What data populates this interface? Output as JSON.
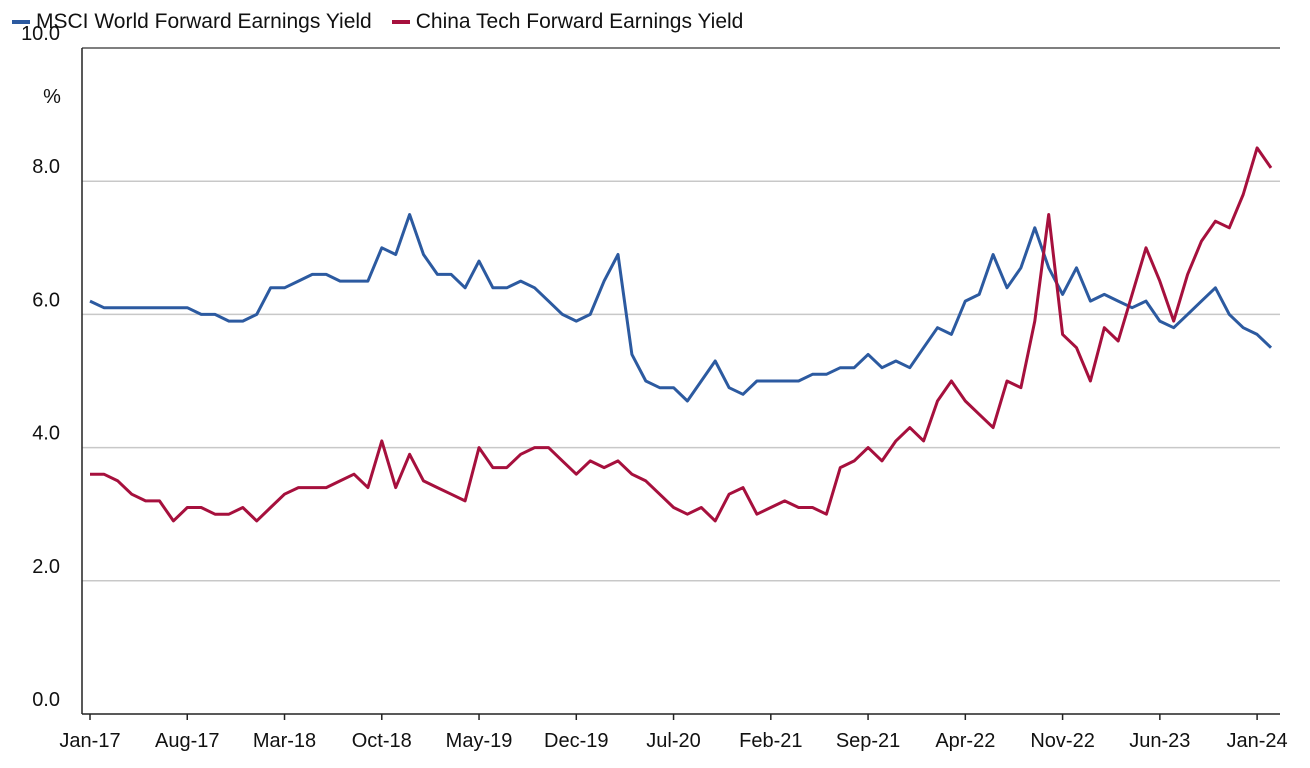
{
  "chart_data": {
    "type": "line",
    "title": "",
    "xlabel": "",
    "ylabel": "",
    "unit_label": "%",
    "ylim": [
      0,
      10
    ],
    "yticks": [
      "0.0",
      "2.0",
      "4.0",
      "6.0",
      "8.0",
      "10.0"
    ],
    "grid": true,
    "legend_position": "top-left",
    "xtick_labels": [
      "Jan-17",
      "Aug-17",
      "Mar-18",
      "Oct-18",
      "May-19",
      "Dec-19",
      "Jul-20",
      "Feb-21",
      "Sep-21",
      "Apr-22",
      "Nov-22",
      "Jun-23",
      "Jan-24"
    ],
    "x": [
      "Jan-17",
      "Feb-17",
      "Mar-17",
      "Apr-17",
      "May-17",
      "Jun-17",
      "Jul-17",
      "Aug-17",
      "Sep-17",
      "Oct-17",
      "Nov-17",
      "Dec-17",
      "Jan-18",
      "Feb-18",
      "Mar-18",
      "Apr-18",
      "May-18",
      "Jun-18",
      "Jul-18",
      "Aug-18",
      "Sep-18",
      "Oct-18",
      "Nov-18",
      "Dec-18",
      "Jan-19",
      "Feb-19",
      "Mar-19",
      "Apr-19",
      "May-19",
      "Jun-19",
      "Jul-19",
      "Aug-19",
      "Sep-19",
      "Oct-19",
      "Nov-19",
      "Dec-19",
      "Jan-20",
      "Feb-20",
      "Mar-20",
      "Apr-20",
      "May-20",
      "Jun-20",
      "Jul-20",
      "Aug-20",
      "Sep-20",
      "Oct-20",
      "Nov-20",
      "Dec-20",
      "Jan-21",
      "Feb-21",
      "Mar-21",
      "Apr-21",
      "May-21",
      "Jun-21",
      "Jul-21",
      "Aug-21",
      "Sep-21",
      "Oct-21",
      "Nov-21",
      "Dec-21",
      "Jan-22",
      "Feb-22",
      "Mar-22",
      "Apr-22",
      "May-22",
      "Jun-22",
      "Jul-22",
      "Aug-22",
      "Sep-22",
      "Oct-22",
      "Nov-22",
      "Dec-22",
      "Jan-23",
      "Feb-23",
      "Mar-23",
      "Apr-23",
      "May-23",
      "Jun-23",
      "Jul-23",
      "Aug-23",
      "Sep-23",
      "Oct-23",
      "Nov-23",
      "Dec-23",
      "Jan-24",
      "Feb-24"
    ],
    "series": [
      {
        "name": "MSCI World Forward Earnings Yield",
        "color": "#2c5aa0",
        "values": [
          6.2,
          6.1,
          6.1,
          6.1,
          6.1,
          6.1,
          6.1,
          6.1,
          6.0,
          6.0,
          5.9,
          5.9,
          6.0,
          6.4,
          6.4,
          6.5,
          6.6,
          6.6,
          6.5,
          6.5,
          6.5,
          7.0,
          6.9,
          7.5,
          6.9,
          6.6,
          6.6,
          6.4,
          6.8,
          6.4,
          6.4,
          6.5,
          6.4,
          6.2,
          6.0,
          5.9,
          6.0,
          6.5,
          6.9,
          5.4,
          5.0,
          4.9,
          4.9,
          4.7,
          5.0,
          5.3,
          4.9,
          4.8,
          5.0,
          5.0,
          5.0,
          5.0,
          5.1,
          5.1,
          5.2,
          5.2,
          5.4,
          5.2,
          5.3,
          5.2,
          5.5,
          5.8,
          5.7,
          6.2,
          6.3,
          6.9,
          6.4,
          6.7,
          7.3,
          6.7,
          6.3,
          6.7,
          6.2,
          6.3,
          6.2,
          6.1,
          6.2,
          5.9,
          5.8,
          6.0,
          6.2,
          6.4,
          6.0,
          5.8,
          5.7,
          5.5
        ]
      },
      {
        "name": "China Tech Forward Earnings Yield",
        "color": "#a6103d",
        "values": [
          3.6,
          3.6,
          3.5,
          3.3,
          3.2,
          3.2,
          2.9,
          3.1,
          3.1,
          3.0,
          3.0,
          3.1,
          2.9,
          3.1,
          3.3,
          3.4,
          3.4,
          3.4,
          3.5,
          3.6,
          3.4,
          4.1,
          3.4,
          3.9,
          3.5,
          3.4,
          3.3,
          3.2,
          4.0,
          3.7,
          3.7,
          3.9,
          4.0,
          4.0,
          3.8,
          3.6,
          3.8,
          3.7,
          3.8,
          3.6,
          3.5,
          3.3,
          3.1,
          3.0,
          3.1,
          2.9,
          3.3,
          3.4,
          3.0,
          3.1,
          3.2,
          3.1,
          3.1,
          3.0,
          3.7,
          3.8,
          4.0,
          3.8,
          4.1,
          4.3,
          4.1,
          4.7,
          5.0,
          4.7,
          4.5,
          4.3,
          5.0,
          4.9,
          5.9,
          7.5,
          5.7,
          5.5,
          5.0,
          5.8,
          5.6,
          6.3,
          7.0,
          6.5,
          5.9,
          6.6,
          7.1,
          7.4,
          7.3,
          7.8,
          8.5,
          8.2
        ]
      }
    ]
  }
}
